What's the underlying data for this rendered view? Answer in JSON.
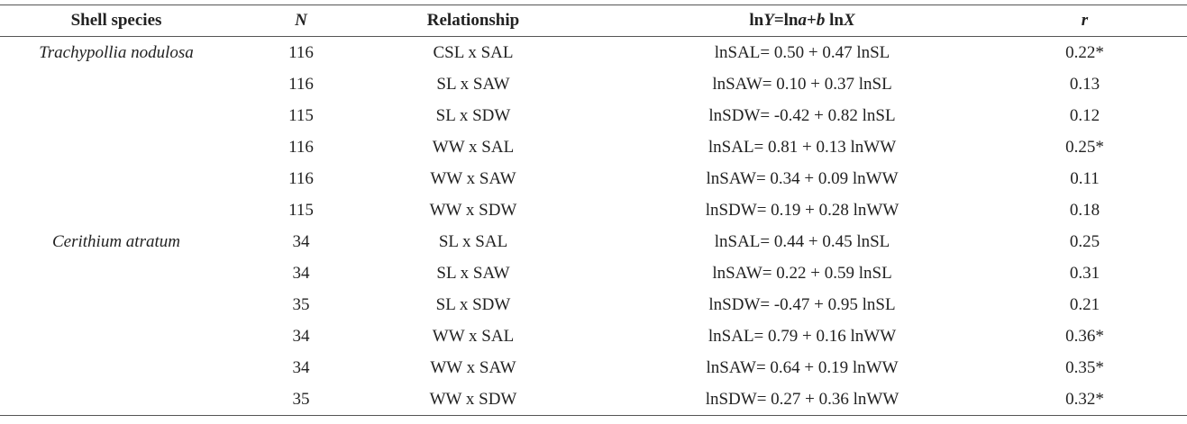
{
  "table": {
    "headers": [
      "Shell species",
      "N",
      "Relationship",
      [
        "ln",
        "Y",
        "=ln",
        "a",
        "+",
        "b",
        " ln",
        "X"
      ],
      "r"
    ],
    "groups": [
      {
        "species": "Trachypollia nodulosa",
        "rows": [
          [
            116,
            "CSL x SAL",
            "lnSAL= 0.50 + 0.47 lnSL",
            "0.22*"
          ],
          [
            116,
            "SL x SAW",
            "lnSAW= 0.10 + 0.37 lnSL",
            "0.13"
          ],
          [
            115,
            "SL x SDW",
            "lnSDW= -0.42 + 0.82 lnSL",
            "0.12"
          ],
          [
            116,
            "WW x SAL",
            "lnSAL= 0.81 + 0.13 lnWW",
            "0.25*"
          ],
          [
            116,
            "WW x SAW",
            "lnSAW= 0.34 + 0.09 lnWW",
            "0.11"
          ],
          [
            115,
            "WW x SDW",
            "lnSDW= 0.19 + 0.28 lnWW",
            "0.18"
          ]
        ]
      },
      {
        "species": "Cerithium atratum",
        "rows": [
          [
            34,
            "SL x SAL",
            "lnSAL= 0.44 + 0.45 lnSL",
            "0.25"
          ],
          [
            34,
            "SL x SAW",
            "lnSAW= 0.22 + 0.59 lnSL",
            "0.31"
          ],
          [
            35,
            "SL x SDW",
            "lnSDW= -0.47 + 0.95 lnSL",
            "0.21"
          ],
          [
            34,
            "WW x SAL",
            "lnSAL= 0.79 + 0.16 lnWW",
            "0.36*"
          ],
          [
            34,
            "WW x SAW",
            "lnSAW= 0.64 + 0.19 lnWW",
            "0.35*"
          ],
          [
            35,
            "WW x SDW",
            "lnSDW= 0.27 + 0.36 lnWW",
            "0.32*"
          ]
        ]
      }
    ]
  }
}
